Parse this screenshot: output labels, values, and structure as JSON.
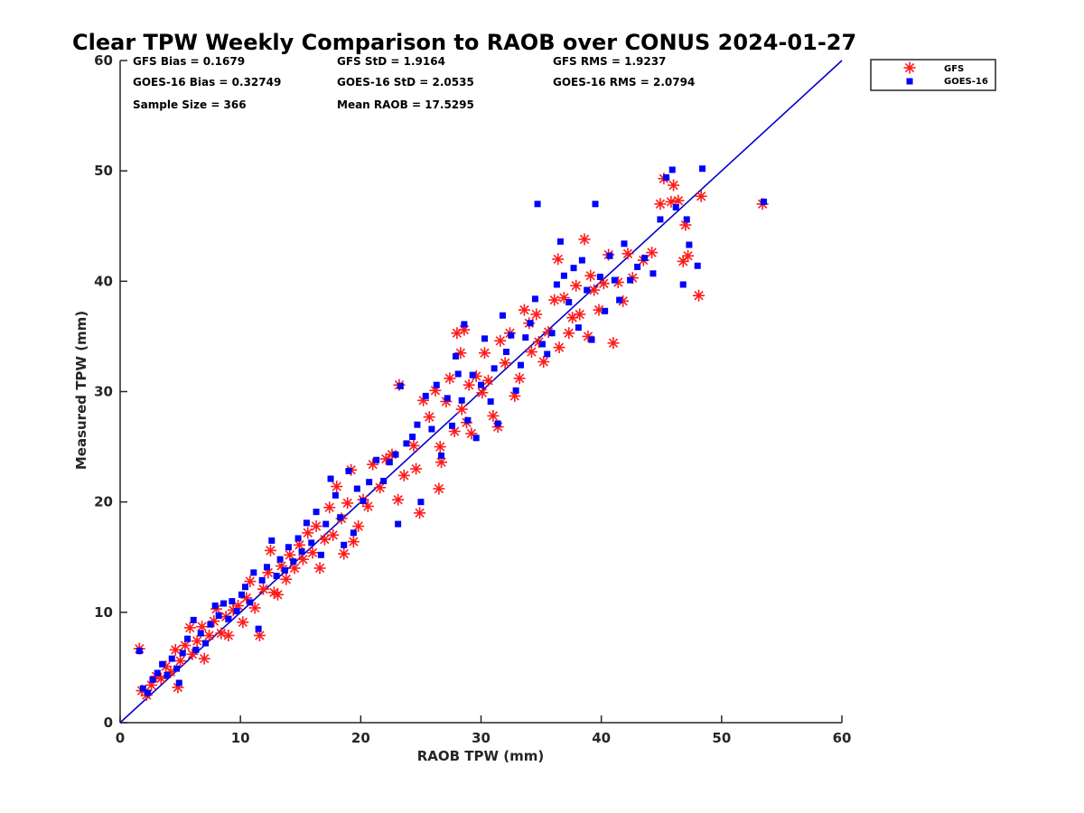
{
  "chart_data": {
    "type": "scatter",
    "title": "Clear TPW Weekly Comparison to RAOB over CONUS 2024-01-27",
    "xlabel": "RAOB TPW (mm)",
    "ylabel": "Measured TPW (mm)",
    "xlim": [
      0,
      60
    ],
    "ylim": [
      0,
      60
    ],
    "xticks": [
      "0",
      "10",
      "20",
      "30",
      "40",
      "50",
      "60"
    ],
    "yticks": [
      "0",
      "10",
      "20",
      "30",
      "40",
      "50",
      "60"
    ],
    "grid": false,
    "legend_position": "top-right outside",
    "reference_line": {
      "from": [
        0,
        0
      ],
      "to": [
        60,
        60
      ],
      "color": "#0000cc"
    },
    "stats": [
      "GFS Bias = 0.1679",
      "GFS StD = 1.9164",
      "GFS RMS = 1.9237",
      "GOES-16 Bias = 0.32749",
      "GOES-16 StD = 2.0535",
      "GOES-16 RMS = 2.0794",
      "Sample Size = 366",
      "Mean RAOB = 17.5295"
    ],
    "series": [
      {
        "name": "GFS",
        "marker": "asterisk",
        "color": "#ff1a1a",
        "points": [
          [
            1.6,
            6.7
          ],
          [
            1.8,
            2.9
          ],
          [
            2.2,
            2.5
          ],
          [
            2.6,
            3.4
          ],
          [
            3.0,
            4.2
          ],
          [
            3.4,
            4.0
          ],
          [
            3.8,
            5.1
          ],
          [
            4.2,
            4.6
          ],
          [
            4.6,
            6.6
          ],
          [
            4.8,
            3.2
          ],
          [
            5.0,
            5.6
          ],
          [
            5.4,
            7.0
          ],
          [
            5.8,
            8.6
          ],
          [
            6.0,
            6.2
          ],
          [
            6.4,
            7.4
          ],
          [
            6.8,
            8.7
          ],
          [
            7.0,
            5.8
          ],
          [
            7.4,
            7.9
          ],
          [
            7.8,
            9.2
          ],
          [
            8.0,
            10.3
          ],
          [
            8.4,
            8.1
          ],
          [
            8.8,
            9.6
          ],
          [
            9.0,
            7.9
          ],
          [
            9.4,
            10.2
          ],
          [
            9.8,
            10.6
          ],
          [
            10.2,
            9.1
          ],
          [
            10.5,
            11.3
          ],
          [
            10.8,
            12.8
          ],
          [
            11.2,
            10.4
          ],
          [
            11.6,
            7.9
          ],
          [
            11.9,
            12.1
          ],
          [
            12.3,
            13.6
          ],
          [
            12.5,
            15.6
          ],
          [
            12.8,
            11.8
          ],
          [
            13.1,
            11.6
          ],
          [
            13.4,
            14.2
          ],
          [
            13.8,
            13.0
          ],
          [
            14.1,
            15.2
          ],
          [
            14.5,
            14.0
          ],
          [
            14.9,
            16.1
          ],
          [
            15.2,
            14.8
          ],
          [
            15.6,
            17.2
          ],
          [
            16.0,
            15.4
          ],
          [
            16.3,
            17.8
          ],
          [
            16.6,
            14.0
          ],
          [
            17.0,
            16.6
          ],
          [
            17.4,
            19.5
          ],
          [
            17.7,
            17.0
          ],
          [
            18.0,
            21.4
          ],
          [
            18.4,
            18.5
          ],
          [
            18.6,
            15.3
          ],
          [
            18.9,
            19.9
          ],
          [
            19.2,
            22.9
          ],
          [
            19.4,
            16.4
          ],
          [
            19.8,
            17.8
          ],
          [
            20.2,
            20.2
          ],
          [
            20.6,
            19.6
          ],
          [
            21.0,
            23.4
          ],
          [
            21.6,
            21.3
          ],
          [
            22.1,
            23.9
          ],
          [
            22.6,
            24.3
          ],
          [
            23.1,
            20.2
          ],
          [
            23.2,
            30.6
          ],
          [
            23.6,
            22.4
          ],
          [
            24.4,
            25.1
          ],
          [
            24.6,
            23.0
          ],
          [
            24.9,
            19.0
          ],
          [
            25.2,
            29.2
          ],
          [
            25.7,
            27.7
          ],
          [
            26.2,
            30.1
          ],
          [
            26.5,
            21.2
          ],
          [
            26.6,
            25.0
          ],
          [
            26.7,
            23.6
          ],
          [
            27.1,
            29.1
          ],
          [
            27.4,
            31.2
          ],
          [
            27.8,
            26.4
          ],
          [
            28.0,
            35.3
          ],
          [
            28.3,
            33.5
          ],
          [
            28.4,
            28.4
          ],
          [
            28.6,
            35.6
          ],
          [
            28.8,
            27.2
          ],
          [
            29.0,
            30.6
          ],
          [
            29.2,
            26.2
          ],
          [
            29.6,
            31.4
          ],
          [
            30.1,
            29.9
          ],
          [
            30.3,
            33.5
          ],
          [
            30.6,
            31.0
          ],
          [
            31.0,
            27.8
          ],
          [
            31.4,
            26.8
          ],
          [
            31.6,
            34.6
          ],
          [
            32.0,
            32.6
          ],
          [
            32.4,
            35.3
          ],
          [
            32.8,
            29.6
          ],
          [
            33.2,
            31.2
          ],
          [
            33.6,
            37.4
          ],
          [
            34.0,
            36.2
          ],
          [
            34.2,
            33.6
          ],
          [
            34.6,
            37.0
          ],
          [
            34.8,
            34.5
          ],
          [
            35.2,
            32.7
          ],
          [
            35.6,
            35.4
          ],
          [
            36.1,
            38.3
          ],
          [
            36.4,
            42.0
          ],
          [
            36.5,
            34.0
          ],
          [
            36.9,
            38.5
          ],
          [
            37.3,
            35.3
          ],
          [
            37.6,
            36.7
          ],
          [
            37.9,
            39.6
          ],
          [
            38.2,
            37.0
          ],
          [
            38.6,
            43.8
          ],
          [
            38.9,
            35.0
          ],
          [
            39.1,
            40.5
          ],
          [
            39.4,
            39.2
          ],
          [
            39.8,
            37.4
          ],
          [
            40.2,
            39.8
          ],
          [
            40.6,
            42.4
          ],
          [
            41.0,
            34.4
          ],
          [
            41.4,
            39.9
          ],
          [
            41.8,
            38.2
          ],
          [
            42.2,
            42.5
          ],
          [
            42.6,
            40.3
          ],
          [
            43.5,
            41.9
          ],
          [
            44.2,
            42.6
          ],
          [
            44.9,
            47.0
          ],
          [
            45.2,
            49.3
          ],
          [
            45.8,
            47.2
          ],
          [
            46.0,
            48.7
          ],
          [
            46.4,
            47.3
          ],
          [
            46.8,
            41.8
          ],
          [
            47.0,
            45.1
          ],
          [
            47.2,
            42.3
          ],
          [
            48.1,
            38.7
          ],
          [
            48.3,
            47.7
          ],
          [
            53.4,
            47.0
          ]
        ]
      },
      {
        "name": "GOES-16",
        "marker": "square",
        "color": "#0000ff",
        "points": [
          [
            1.6,
            6.5
          ],
          [
            1.9,
            3.1
          ],
          [
            2.3,
            2.7
          ],
          [
            2.7,
            3.9
          ],
          [
            3.1,
            4.5
          ],
          [
            3.5,
            5.3
          ],
          [
            3.9,
            4.3
          ],
          [
            4.3,
            5.8
          ],
          [
            4.7,
            4.9
          ],
          [
            4.9,
            3.6
          ],
          [
            5.2,
            6.3
          ],
          [
            5.6,
            7.6
          ],
          [
            6.1,
            9.3
          ],
          [
            6.3,
            6.6
          ],
          [
            6.7,
            8.1
          ],
          [
            7.1,
            7.2
          ],
          [
            7.5,
            8.9
          ],
          [
            7.9,
            10.6
          ],
          [
            8.2,
            9.7
          ],
          [
            8.6,
            10.8
          ],
          [
            9.0,
            9.4
          ],
          [
            9.3,
            11.0
          ],
          [
            9.7,
            10.1
          ],
          [
            10.1,
            11.6
          ],
          [
            10.4,
            12.3
          ],
          [
            10.8,
            10.9
          ],
          [
            11.1,
            13.6
          ],
          [
            11.5,
            8.5
          ],
          [
            11.8,
            12.9
          ],
          [
            12.2,
            14.1
          ],
          [
            12.6,
            16.5
          ],
          [
            13.0,
            13.3
          ],
          [
            13.3,
            14.8
          ],
          [
            13.7,
            13.8
          ],
          [
            14.0,
            15.9
          ],
          [
            14.4,
            14.6
          ],
          [
            14.8,
            16.7
          ],
          [
            15.1,
            15.5
          ],
          [
            15.5,
            18.1
          ],
          [
            15.9,
            16.3
          ],
          [
            16.3,
            19.1
          ],
          [
            16.7,
            15.2
          ],
          [
            17.1,
            18.0
          ],
          [
            17.5,
            22.1
          ],
          [
            17.9,
            20.6
          ],
          [
            18.3,
            18.6
          ],
          [
            18.6,
            16.1
          ],
          [
            19.0,
            22.8
          ],
          [
            19.4,
            17.2
          ],
          [
            19.7,
            21.2
          ],
          [
            20.2,
            20.1
          ],
          [
            20.7,
            21.8
          ],
          [
            21.3,
            23.8
          ],
          [
            21.9,
            21.9
          ],
          [
            22.4,
            23.6
          ],
          [
            22.9,
            24.3
          ],
          [
            23.1,
            18.0
          ],
          [
            23.3,
            30.5
          ],
          [
            23.8,
            25.3
          ],
          [
            24.3,
            25.9
          ],
          [
            24.7,
            27.0
          ],
          [
            25.0,
            20.0
          ],
          [
            25.4,
            29.6
          ],
          [
            25.9,
            26.6
          ],
          [
            26.3,
            30.6
          ],
          [
            26.7,
            24.2
          ],
          [
            27.2,
            29.4
          ],
          [
            27.6,
            26.9
          ],
          [
            27.9,
            33.2
          ],
          [
            28.1,
            31.6
          ],
          [
            28.4,
            29.2
          ],
          [
            28.6,
            36.1
          ],
          [
            28.9,
            27.4
          ],
          [
            29.3,
            31.5
          ],
          [
            29.6,
            25.8
          ],
          [
            30.0,
            30.6
          ],
          [
            30.3,
            34.8
          ],
          [
            30.8,
            29.1
          ],
          [
            31.1,
            32.1
          ],
          [
            31.4,
            27.1
          ],
          [
            31.8,
            36.9
          ],
          [
            32.1,
            33.6
          ],
          [
            32.5,
            35.1
          ],
          [
            32.9,
            30.1
          ],
          [
            33.3,
            32.4
          ],
          [
            33.7,
            34.9
          ],
          [
            34.1,
            36.2
          ],
          [
            34.5,
            38.4
          ],
          [
            34.7,
            47.0
          ],
          [
            35.1,
            34.3
          ],
          [
            35.5,
            33.4
          ],
          [
            35.9,
            35.3
          ],
          [
            36.3,
            39.7
          ],
          [
            36.6,
            43.6
          ],
          [
            36.9,
            40.5
          ],
          [
            37.3,
            38.1
          ],
          [
            37.7,
            41.2
          ],
          [
            38.1,
            35.8
          ],
          [
            38.4,
            41.9
          ],
          [
            38.8,
            39.2
          ],
          [
            39.2,
            34.7
          ],
          [
            39.5,
            47.0
          ],
          [
            39.9,
            40.4
          ],
          [
            40.3,
            37.3
          ],
          [
            40.7,
            42.3
          ],
          [
            41.1,
            40.1
          ],
          [
            41.5,
            38.3
          ],
          [
            41.9,
            43.4
          ],
          [
            42.4,
            40.1
          ],
          [
            43.0,
            41.3
          ],
          [
            43.6,
            42.1
          ],
          [
            44.3,
            40.7
          ],
          [
            44.9,
            45.6
          ],
          [
            45.4,
            49.4
          ],
          [
            45.9,
            50.1
          ],
          [
            46.2,
            46.7
          ],
          [
            46.8,
            39.7
          ],
          [
            47.1,
            45.6
          ],
          [
            47.3,
            43.3
          ],
          [
            48.0,
            41.4
          ],
          [
            48.4,
            50.2
          ],
          [
            53.5,
            47.2
          ]
        ]
      }
    ]
  }
}
